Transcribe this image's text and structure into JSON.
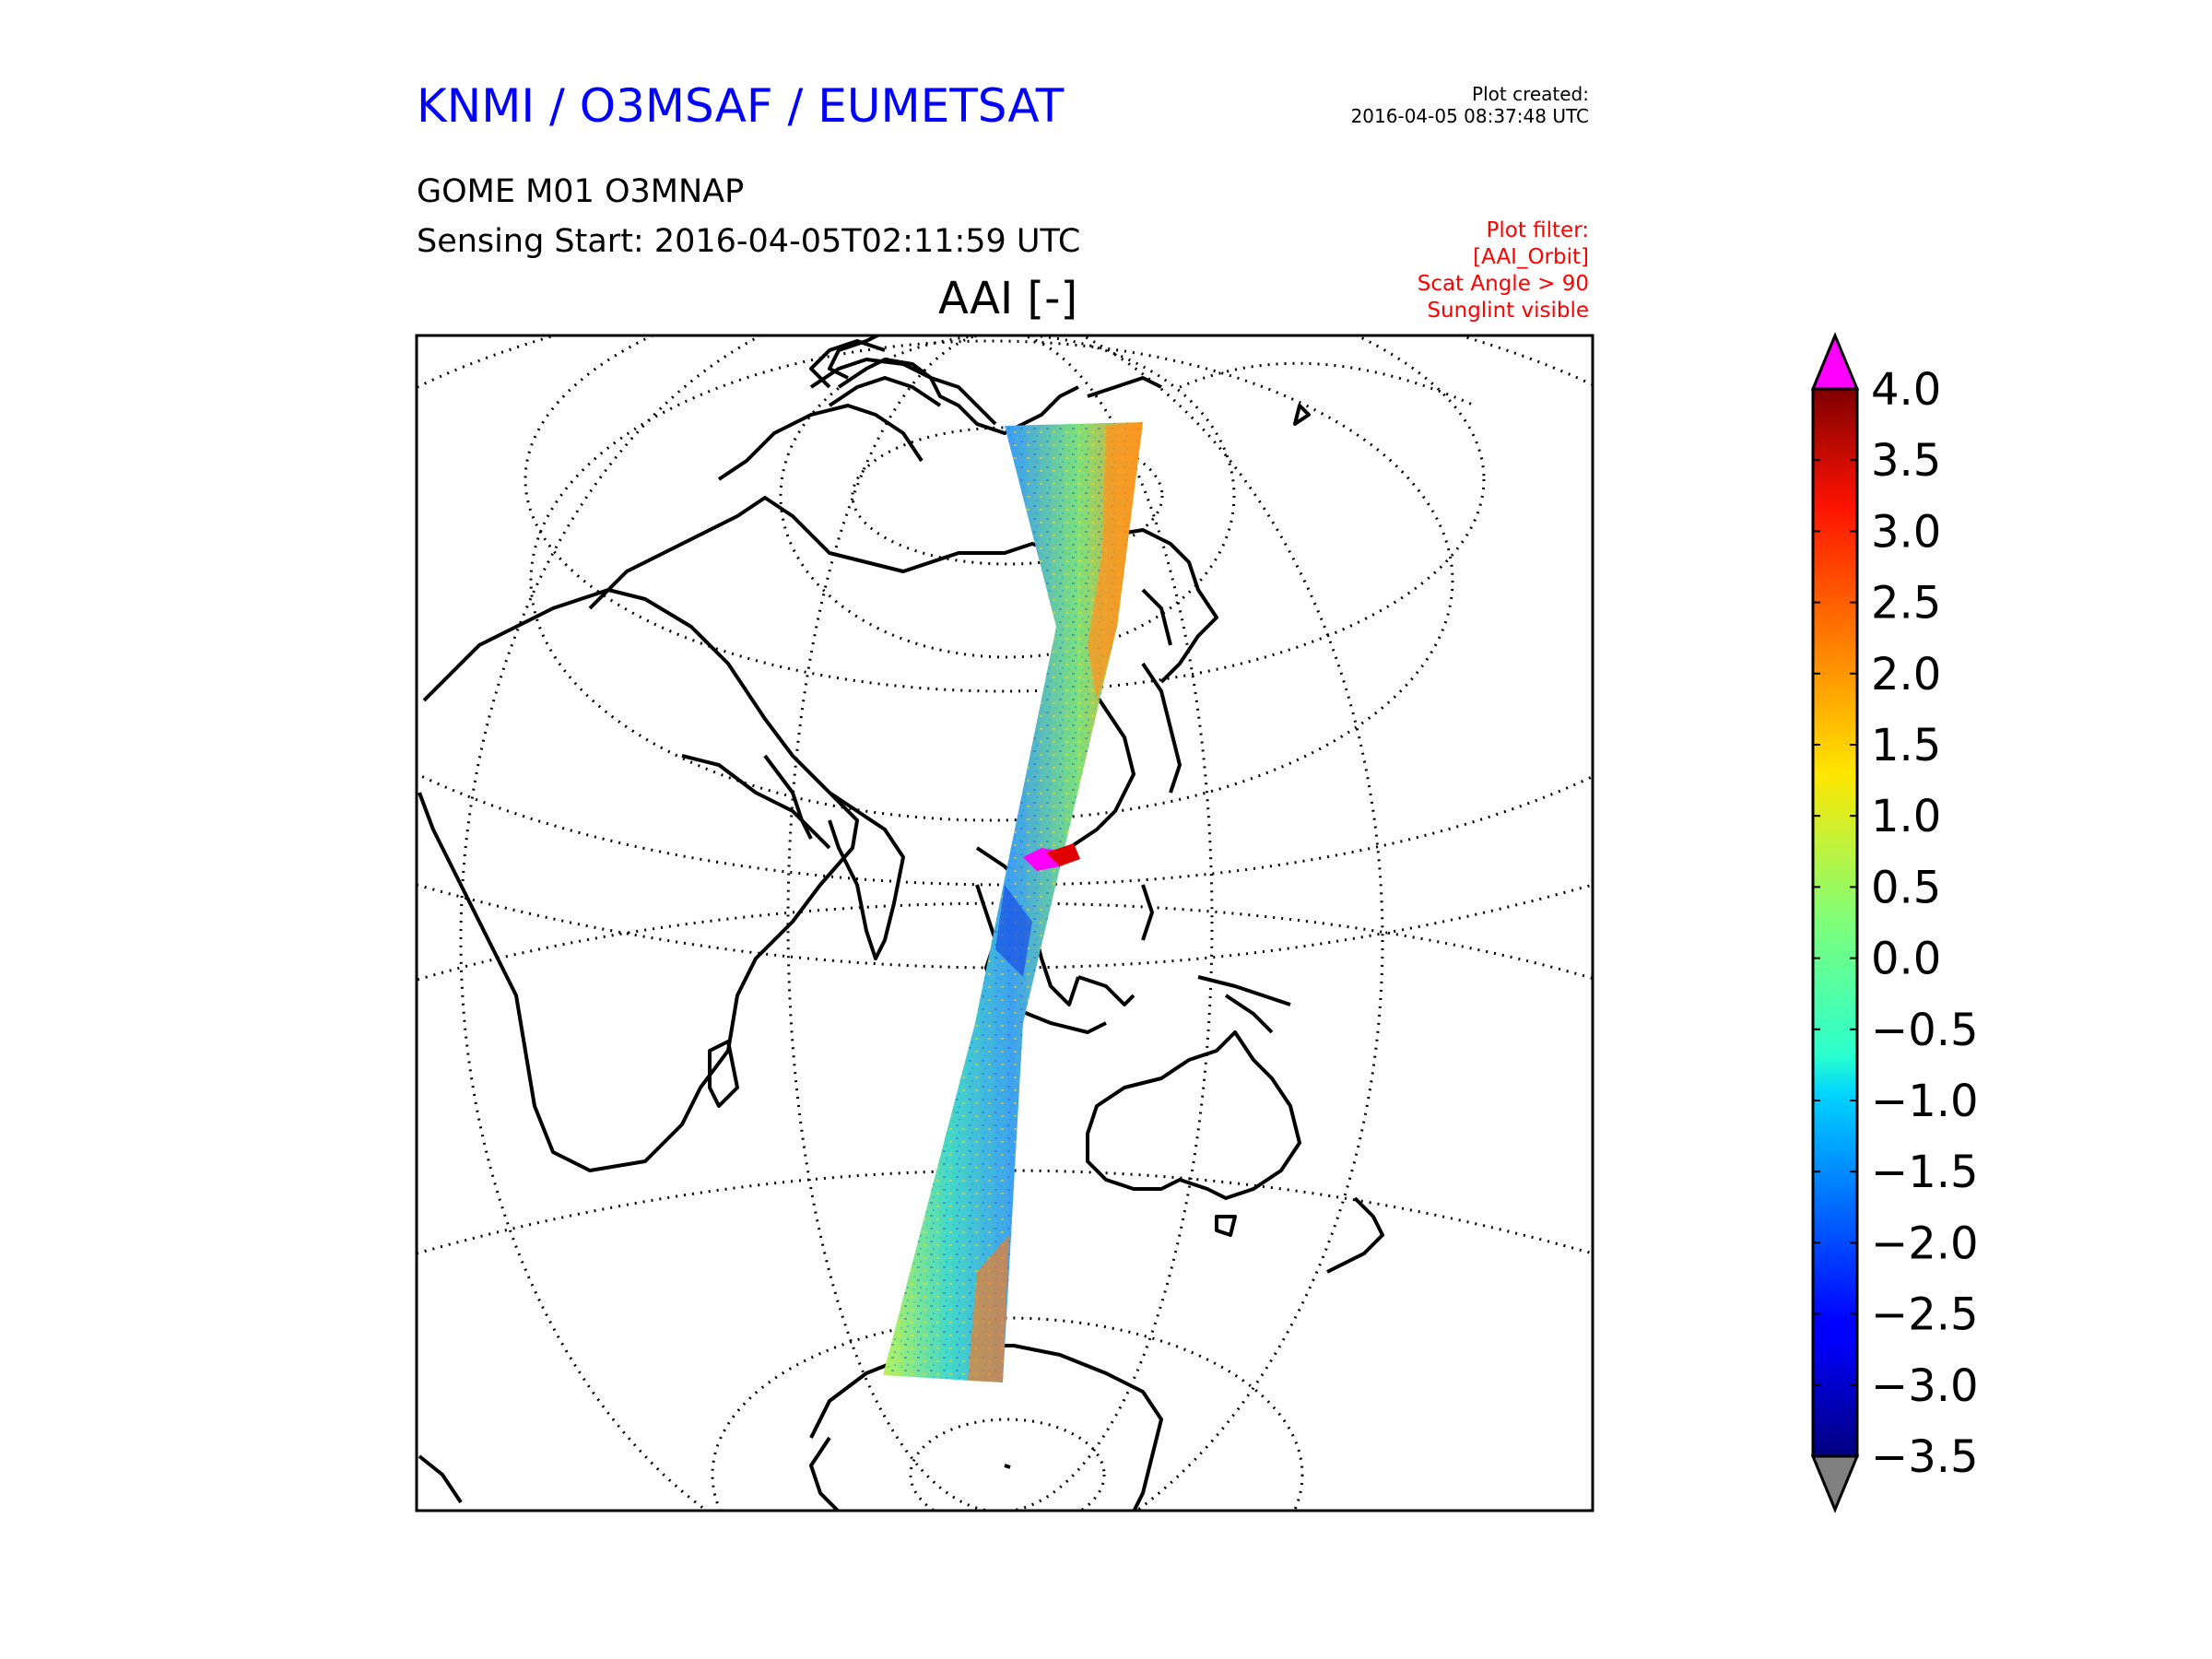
{
  "header": {
    "title": "KNMI / O3MSAF / EUMETSAT",
    "created_label": "Plot created:",
    "created_value": "2016-04-05 08:37:48 UTC",
    "product": "GOME M01 O3MNAP",
    "sensing": "Sensing Start: 2016-04-05T02:11:59 UTC"
  },
  "filter": {
    "lines": [
      "Plot filter:",
      "[AAI_Orbit]",
      "Scat Angle > 90",
      "Sunglint visible"
    ]
  },
  "plot": {
    "title": "AAI [-]"
  },
  "colorbar": {
    "ticks": [
      "4.0",
      "3.5",
      "3.0",
      "2.5",
      "2.0",
      "1.5",
      "1.0",
      "0.5",
      "0.0",
      "−0.5",
      "−1.0",
      "−1.5",
      "−2.0",
      "−2.5",
      "−3.0",
      "−3.5"
    ],
    "min": -3.5,
    "max": 4.0,
    "over_color": "#ff00ff",
    "under_color": "#808080",
    "colormap": "jet"
  },
  "colors": {
    "title": "#0000ff",
    "filter_text": "#ff0000"
  }
}
